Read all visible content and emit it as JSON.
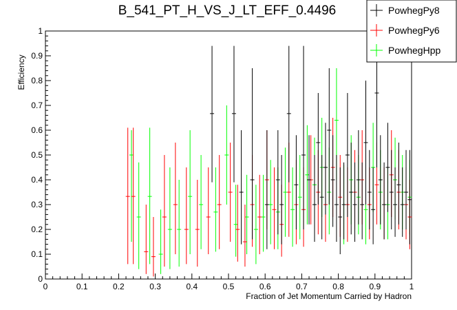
{
  "chart_data": {
    "type": "scatter",
    "title": "B_541_PT_H_VS_J_LT_EFF_0.4496",
    "xlabel": "Fraction of Jet Momentum Carried by Hadron",
    "ylabel": "Efficiency",
    "xlim": [
      0,
      1
    ],
    "ylim": [
      0,
      1
    ],
    "xticks": [
      "0",
      "0.1",
      "0.2",
      "0.3",
      "0.4",
      "0.5",
      "0.6",
      "0.7",
      "0.8",
      "0.9",
      "1"
    ],
    "yticks": [
      "0",
      "0.1",
      "0.2",
      "0.3",
      "0.4",
      "0.5",
      "0.6",
      "0.7",
      "0.8",
      "0.9",
      "1"
    ],
    "legend_position": "top-right",
    "series": [
      {
        "name": "PowhegPy8",
        "color": "#000000",
        "points": [
          [
            0.455,
            0.667,
            0.39,
            0.94
          ],
          [
            0.515,
            0.667,
            0.39,
            0.94
          ],
          [
            0.535,
            0.35,
            0.14,
            0.6
          ],
          [
            0.565,
            0.4,
            0.16,
            0.85
          ],
          [
            0.605,
            0.3,
            0.12,
            0.6
          ],
          [
            0.635,
            0.4,
            0.18,
            0.6
          ],
          [
            0.645,
            0.3,
            0.14,
            0.5
          ],
          [
            0.665,
            0.667,
            0.39,
            0.94
          ],
          [
            0.685,
            0.38,
            0.2,
            0.58
          ],
          [
            0.705,
            0.5,
            0.2,
            0.94
          ],
          [
            0.72,
            0.4,
            0.22,
            0.58
          ],
          [
            0.735,
            0.3,
            0.15,
            0.5
          ],
          [
            0.745,
            0.55,
            0.3,
            0.75
          ],
          [
            0.755,
            0.33,
            0.16,
            0.5
          ],
          [
            0.765,
            0.45,
            0.26,
            0.63
          ],
          [
            0.775,
            0.6,
            0.3,
            0.85
          ],
          [
            0.785,
            0.4,
            0.21,
            0.58
          ],
          [
            0.795,
            0.3,
            0.15,
            0.5
          ],
          [
            0.805,
            0.25,
            0.1,
            0.45
          ],
          [
            0.815,
            0.3,
            0.16,
            0.47
          ],
          [
            0.825,
            0.5,
            0.25,
            0.75
          ],
          [
            0.835,
            0.35,
            0.18,
            0.55
          ],
          [
            0.845,
            0.3,
            0.15,
            0.47
          ],
          [
            0.855,
            0.4,
            0.22,
            0.6
          ],
          [
            0.865,
            0.3,
            0.16,
            0.47
          ],
          [
            0.875,
            0.55,
            0.3,
            0.8
          ],
          [
            0.885,
            0.35,
            0.2,
            0.52
          ],
          [
            0.895,
            0.28,
            0.14,
            0.45
          ],
          [
            0.905,
            0.75,
            0.45,
            0.94
          ],
          [
            0.915,
            0.4,
            0.22,
            0.58
          ],
          [
            0.925,
            0.3,
            0.16,
            0.47
          ],
          [
            0.935,
            0.45,
            0.27,
            0.63
          ],
          [
            0.945,
            0.35,
            0.2,
            0.52
          ],
          [
            0.955,
            0.3,
            0.17,
            0.45
          ],
          [
            0.965,
            0.38,
            0.22,
            0.55
          ],
          [
            0.975,
            0.3,
            0.17,
            0.45
          ],
          [
            0.985,
            0.35,
            0.2,
            0.52
          ],
          [
            0.995,
            0.32,
            0.14,
            0.52
          ]
        ]
      },
      {
        "name": "PowhegPy6",
        "color": "#ff0000",
        "points": [
          [
            0.225,
            0.333,
            0.06,
            0.61
          ],
          [
            0.24,
            0.333,
            0.06,
            0.61
          ],
          [
            0.275,
            0.11,
            0.02,
            0.3
          ],
          [
            0.295,
            0.09,
            0.01,
            0.25
          ],
          [
            0.325,
            0.25,
            0.05,
            0.5
          ],
          [
            0.355,
            0.3,
            0.1,
            0.55
          ],
          [
            0.385,
            0.2,
            0.06,
            0.45
          ],
          [
            0.415,
            0.2,
            0.05,
            0.4
          ],
          [
            0.445,
            0.25,
            0.1,
            0.45
          ],
          [
            0.475,
            0.3,
            0.12,
            0.5
          ],
          [
            0.505,
            0.35,
            0.15,
            0.55
          ],
          [
            0.525,
            0.2,
            0.07,
            0.38
          ],
          [
            0.545,
            0.15,
            0.05,
            0.3
          ],
          [
            0.565,
            0.3,
            0.13,
            0.5
          ],
          [
            0.585,
            0.25,
            0.1,
            0.42
          ],
          [
            0.605,
            0.4,
            0.2,
            0.6
          ],
          [
            0.625,
            0.28,
            0.12,
            0.45
          ],
          [
            0.645,
            0.22,
            0.09,
            0.38
          ],
          [
            0.665,
            0.35,
            0.17,
            0.55
          ],
          [
            0.685,
            0.3,
            0.14,
            0.48
          ],
          [
            0.705,
            0.28,
            0.13,
            0.45
          ],
          [
            0.725,
            0.4,
            0.22,
            0.58
          ],
          [
            0.745,
            0.35,
            0.18,
            0.52
          ],
          [
            0.765,
            0.3,
            0.15,
            0.47
          ],
          [
            0.785,
            0.45,
            0.25,
            0.65
          ],
          [
            0.805,
            0.33,
            0.17,
            0.5
          ],
          [
            0.825,
            0.3,
            0.15,
            0.45
          ],
          [
            0.845,
            0.35,
            0.2,
            0.52
          ],
          [
            0.865,
            0.4,
            0.22,
            0.6
          ],
          [
            0.885,
            0.3,
            0.16,
            0.45
          ],
          [
            0.905,
            0.38,
            0.22,
            0.55
          ],
          [
            0.925,
            0.3,
            0.16,
            0.45
          ],
          [
            0.945,
            0.42,
            0.25,
            0.6
          ],
          [
            0.965,
            0.35,
            0.2,
            0.52
          ],
          [
            0.985,
            0.3,
            0.16,
            0.45
          ],
          [
            0.995,
            0.25,
            0.12,
            0.4
          ]
        ]
      },
      {
        "name": "PowhegHpp",
        "color": "#00ff00",
        "points": [
          [
            0.235,
            0.5,
            0.15,
            0.6
          ],
          [
            0.255,
            0.25,
            0.04,
            0.47
          ],
          [
            0.285,
            0.333,
            0.06,
            0.61
          ],
          [
            0.315,
            0.1,
            0.02,
            0.28
          ],
          [
            0.34,
            0.2,
            0.04,
            0.45
          ],
          [
            0.365,
            0.2,
            0.05,
            0.4
          ],
          [
            0.395,
            0.333,
            0.1,
            0.6
          ],
          [
            0.425,
            0.3,
            0.12,
            0.5
          ],
          [
            0.465,
            0.27,
            0.11,
            0.45
          ],
          [
            0.495,
            0.5,
            0.3,
            0.7
          ],
          [
            0.52,
            0.22,
            0.09,
            0.38
          ],
          [
            0.55,
            0.25,
            0.1,
            0.42
          ],
          [
            0.575,
            0.2,
            0.06,
            0.38
          ],
          [
            0.595,
            0.25,
            0.11,
            0.42
          ],
          [
            0.615,
            0.3,
            0.14,
            0.48
          ],
          [
            0.635,
            0.27,
            0.12,
            0.45
          ],
          [
            0.655,
            0.35,
            0.17,
            0.53
          ],
          [
            0.675,
            0.28,
            0.13,
            0.45
          ],
          [
            0.695,
            0.33,
            0.16,
            0.5
          ],
          [
            0.715,
            0.42,
            0.22,
            0.62
          ],
          [
            0.735,
            0.38,
            0.2,
            0.57
          ],
          [
            0.755,
            0.45,
            0.25,
            0.65
          ],
          [
            0.775,
            0.35,
            0.18,
            0.53
          ],
          [
            0.795,
            0.64,
            0.4,
            0.85
          ],
          [
            0.815,
            0.3,
            0.14,
            0.46
          ],
          [
            0.835,
            0.4,
            0.22,
            0.58
          ],
          [
            0.855,
            0.33,
            0.18,
            0.5
          ],
          [
            0.875,
            0.28,
            0.14,
            0.43
          ],
          [
            0.895,
            0.45,
            0.27,
            0.63
          ],
          [
            0.915,
            0.35,
            0.2,
            0.52
          ],
          [
            0.935,
            0.3,
            0.16,
            0.45
          ],
          [
            0.955,
            0.4,
            0.24,
            0.57
          ],
          [
            0.975,
            0.35,
            0.2,
            0.5
          ],
          [
            0.995,
            0.33,
            0.18,
            0.48
          ]
        ]
      }
    ]
  }
}
